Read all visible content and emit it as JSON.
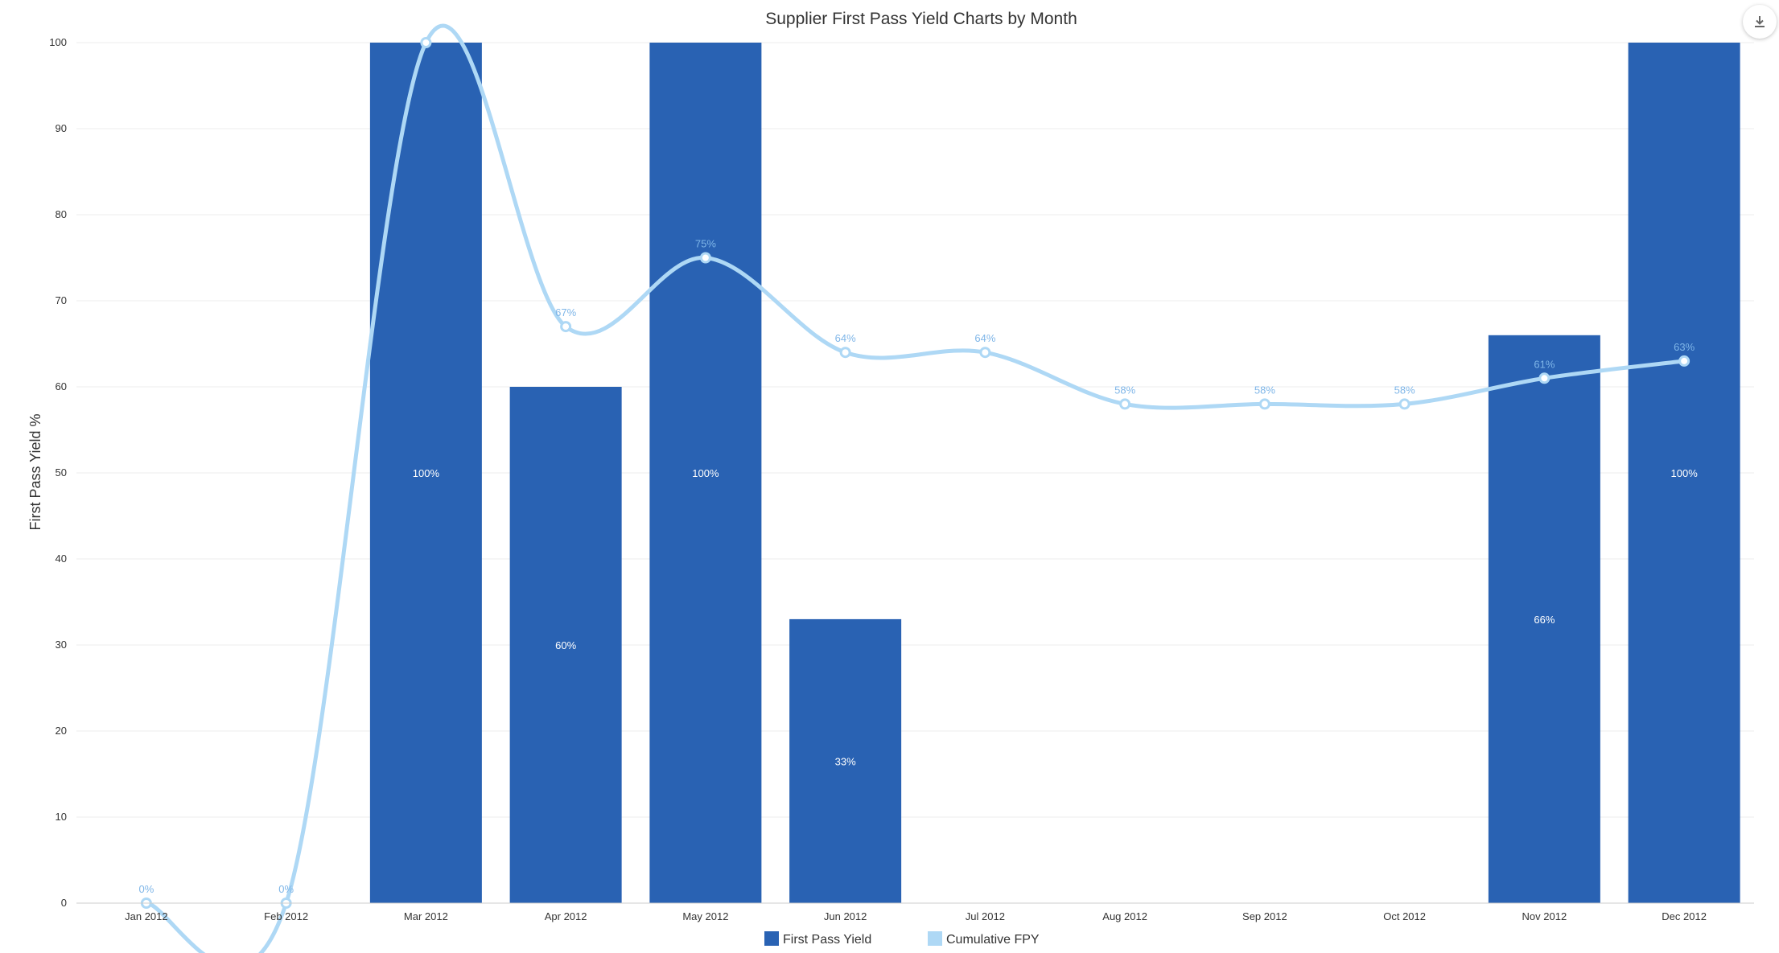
{
  "toolbar": {
    "download_icon": "download-icon"
  },
  "colors": {
    "bar": "#2962b3",
    "line": "#aed8f5",
    "line_label": "#7fb6e8",
    "bar_label": "#ffffff",
    "grid": "#eeeeee",
    "axis_text": "#333333",
    "title": "#333333"
  },
  "chart_data": {
    "type": "bar",
    "title": "Supplier First Pass Yield Charts by Month",
    "xlabel": "",
    "ylabel": "First Pass Yield %",
    "ylim": [
      0,
      100
    ],
    "yticks": [
      0,
      10,
      20,
      30,
      40,
      50,
      60,
      70,
      80,
      90,
      100
    ],
    "grid": true,
    "legend_position": "bottom",
    "categories": [
      "Jan 2012",
      "Feb 2012",
      "Mar 2012",
      "Apr 2012",
      "May 2012",
      "Jun 2012",
      "Jul 2012",
      "Aug 2012",
      "Sep 2012",
      "Oct 2012",
      "Nov 2012",
      "Dec 2012"
    ],
    "series": [
      {
        "name": "First Pass Yield",
        "type": "bar",
        "values": [
          0,
          0,
          100,
          60,
          100,
          33,
          0,
          0,
          0,
          0,
          66,
          100
        ],
        "labels": [
          "",
          "",
          "100%",
          "60%",
          "100%",
          "33%",
          "",
          "",
          "",
          "",
          "66%",
          "100%"
        ]
      },
      {
        "name": "Cumulative FPY",
        "type": "line",
        "values": [
          0,
          0,
          100,
          67,
          75,
          64,
          64,
          58,
          58,
          58,
          61,
          63
        ],
        "labels": [
          "0%",
          "0%",
          "",
          "67%",
          "75%",
          "64%",
          "64%",
          "58%",
          "58%",
          "58%",
          "61%",
          "63%"
        ]
      }
    ]
  }
}
